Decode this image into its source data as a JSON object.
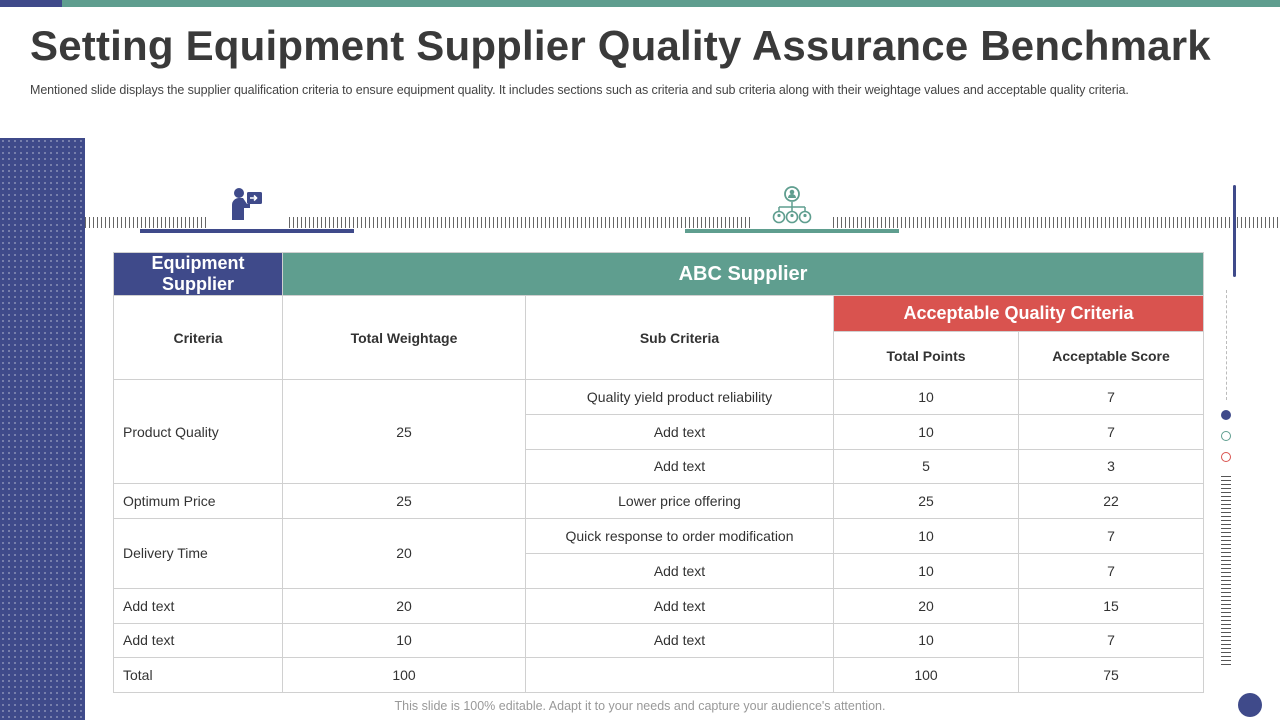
{
  "slide": {
    "title": "Setting Equipment Supplier Quality Assurance Benchmark",
    "subtitle": "Mentioned slide displays the supplier qualification criteria to ensure equipment quality. It includes sections such as criteria and sub criteria along with their weightage values and acceptable quality criteria.",
    "footer": "This slide is 100% editable. Adapt it to your needs and capture your audience's attention."
  },
  "colors": {
    "primary": "#3f4a8a",
    "secondary": "#5f9e8f",
    "accent": "#d9534f"
  },
  "icons": {
    "tab_1": "presenter-icon",
    "tab_2": "team-hierarchy-icon"
  },
  "table": {
    "header": {
      "equipment_supplier": "Equipment Supplier",
      "abc_supplier": "ABC Supplier",
      "acceptable_quality_criteria": "Acceptable Quality Criteria"
    },
    "columns": {
      "criteria": "Criteria",
      "total_weightage": "Total Weightage",
      "sub_criteria": "Sub Criteria",
      "total_points": "Total Points",
      "acceptable_score": "Acceptable Score"
    },
    "groups": [
      {
        "criteria": "Product  Quality",
        "weightage": "25",
        "subs": [
          {
            "sub": "Quality yield product reliability",
            "points": "10",
            "score": "7"
          },
          {
            "sub": "Add text",
            "points": "10",
            "score": "7"
          },
          {
            "sub": "Add text",
            "points": "5",
            "score": "3"
          }
        ]
      },
      {
        "criteria": "Optimum  Price",
        "weightage": "25",
        "subs": [
          {
            "sub": "Lower price offering",
            "points": "25",
            "score": "22"
          }
        ]
      },
      {
        "criteria": "Delivery Time",
        "weightage": "20",
        "subs": [
          {
            "sub": "Quick response to order modification",
            "points": "10",
            "score": "7"
          },
          {
            "sub": "Add text",
            "points": "10",
            "score": "7"
          }
        ]
      },
      {
        "criteria": "Add text",
        "weightage": "20",
        "subs": [
          {
            "sub": "Add text",
            "points": "20",
            "score": "15"
          }
        ]
      },
      {
        "criteria": "Add text",
        "weightage": "10",
        "subs": [
          {
            "sub": "Add text",
            "points": "10",
            "score": "7"
          }
        ]
      }
    ],
    "total": {
      "label": "Total",
      "weightage": "100",
      "sub": "",
      "points": "100",
      "score": "75"
    }
  }
}
